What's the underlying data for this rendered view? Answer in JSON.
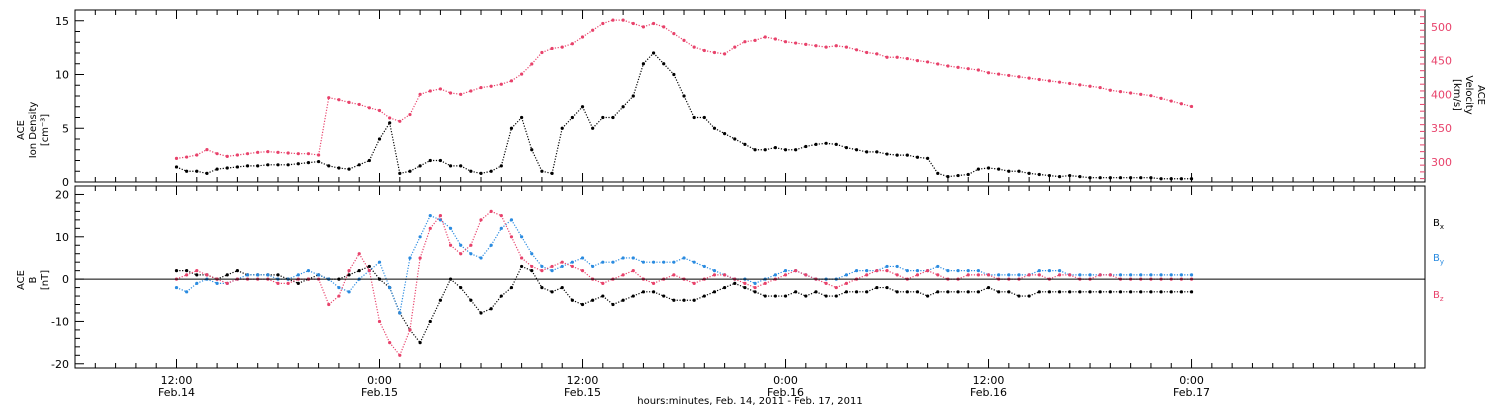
{
  "chart_data": [
    {
      "type": "scatter",
      "panel": "top",
      "ylabel": "ACE Ion Density [cm⁻³]",
      "ylabel_lines": [
        "ACE",
        "Ion Density",
        "[cm⁻³]"
      ],
      "ylim": [
        0,
        16
      ],
      "yticks": [
        0,
        5,
        10,
        15
      ],
      "y2label": "ACE Velocity [km/s]",
      "y2label_lines": [
        "ACE",
        "Velocity",
        "[km/s]"
      ],
      "y2lim": [
        270,
        525
      ],
      "y2ticks": [
        300,
        350,
        400,
        450,
        500
      ],
      "y2_color": "#e8426b",
      "series": [
        {
          "name": "Ion Density",
          "color": "#000000",
          "axis": "left",
          "x_hours": [
            0,
            1,
            2,
            3,
            4,
            5,
            6,
            7,
            8,
            9,
            10,
            11,
            12,
            13,
            14,
            15,
            16,
            17,
            18,
            19,
            20,
            21,
            22,
            23,
            24,
            25,
            26,
            27,
            28,
            29,
            30,
            31,
            32,
            33,
            34,
            35,
            36,
            37,
            38,
            39,
            40,
            41,
            42,
            43,
            44,
            45,
            46,
            47,
            48,
            49,
            50,
            51,
            52,
            53,
            54,
            55,
            56,
            57,
            58,
            59,
            60,
            61,
            62,
            63,
            64,
            65,
            66,
            67,
            68,
            69,
            70,
            71,
            72,
            73,
            74,
            75,
            76,
            77,
            78,
            79,
            80,
            81,
            82,
            83,
            84,
            85,
            86,
            87,
            88,
            89,
            90,
            91,
            92,
            93,
            94,
            95,
            96,
            97,
            98,
            99,
            100
          ],
          "values": [
            1.4,
            1.0,
            1.0,
            0.8,
            1.2,
            1.3,
            1.4,
            1.5,
            1.5,
            1.6,
            1.6,
            1.6,
            1.7,
            1.8,
            1.9,
            1.5,
            1.3,
            1.2,
            1.6,
            2.0,
            4.0,
            5.5,
            0.8,
            1.0,
            1.5,
            2.0,
            2.0,
            1.5,
            1.5,
            1.0,
            0.8,
            1.0,
            1.5,
            5.0,
            6.0,
            3.0,
            1.0,
            0.8,
            5.0,
            6.0,
            7.0,
            5.0,
            6.0,
            6.0,
            7.0,
            8.0,
            11.0,
            12.0,
            11.0,
            10.0,
            8.0,
            6.0,
            6.0,
            5.0,
            4.5,
            4.0,
            3.5,
            3.0,
            3.0,
            3.2,
            3.0,
            3.0,
            3.3,
            3.5,
            3.6,
            3.5,
            3.2,
            3.0,
            2.8,
            2.8,
            2.6,
            2.5,
            2.5,
            2.3,
            2.2,
            0.8,
            0.5,
            0.6,
            0.7,
            1.2,
            1.3,
            1.2,
            1.0,
            1.0,
            0.8,
            0.7,
            0.6,
            0.5,
            0.6,
            0.5,
            0.4,
            0.4,
            0.4,
            0.4,
            0.4,
            0.4,
            0.4,
            0.3,
            0.3,
            0.3,
            0.3
          ]
        },
        {
          "name": "Velocity",
          "color": "#e8426b",
          "axis": "right",
          "x_hours": [
            0,
            1,
            2,
            3,
            4,
            5,
            6,
            7,
            8,
            9,
            10,
            11,
            12,
            13,
            14,
            15,
            16,
            17,
            18,
            19,
            20,
            21,
            22,
            23,
            24,
            25,
            26,
            27,
            28,
            29,
            30,
            31,
            32,
            33,
            34,
            35,
            36,
            37,
            38,
            39,
            40,
            41,
            42,
            43,
            44,
            45,
            46,
            47,
            48,
            49,
            50,
            51,
            52,
            53,
            54,
            55,
            56,
            57,
            58,
            59,
            60,
            61,
            62,
            63,
            64,
            65,
            66,
            67,
            68,
            69,
            70,
            71,
            72,
            73,
            74,
            75,
            76,
            77,
            78,
            79,
            80,
            81,
            82,
            83,
            84,
            85,
            86,
            87,
            88,
            89,
            90,
            91,
            92,
            93,
            94,
            95,
            96,
            97,
            98,
            99,
            100
          ],
          "values": [
            305,
            307,
            310,
            318,
            312,
            308,
            310,
            312,
            314,
            315,
            314,
            313,
            312,
            312,
            310,
            395,
            392,
            388,
            385,
            380,
            376,
            365,
            360,
            370,
            400,
            405,
            408,
            402,
            400,
            405,
            410,
            412,
            415,
            420,
            430,
            445,
            462,
            468,
            470,
            475,
            485,
            495,
            505,
            510,
            510,
            505,
            500,
            505,
            500,
            490,
            480,
            470,
            465,
            462,
            460,
            470,
            478,
            480,
            485,
            482,
            478,
            476,
            474,
            472,
            470,
            472,
            470,
            466,
            462,
            460,
            455,
            455,
            453,
            450,
            448,
            445,
            442,
            440,
            438,
            436,
            432,
            430,
            428,
            426,
            424,
            422,
            420,
            418,
            416,
            414,
            412,
            410,
            406,
            404,
            402,
            400,
            398,
            394,
            390,
            386,
            382
          ]
        }
      ]
    },
    {
      "type": "scatter",
      "panel": "bottom",
      "ylabel": "ACE B [nT]",
      "ylabel_lines": [
        "ACE",
        "B",
        "[nT]"
      ],
      "ylim": [
        -21,
        22
      ],
      "yticks": [
        -20,
        -10,
        0,
        10,
        20
      ],
      "zero_line": true,
      "series": [
        {
          "name": "Bx",
          "color": "#000000",
          "label_main": "B",
          "label_sub": "x",
          "x_hours": [
            0,
            1,
            2,
            3,
            4,
            5,
            6,
            7,
            8,
            9,
            10,
            11,
            12,
            13,
            14,
            15,
            16,
            17,
            18,
            19,
            20,
            21,
            22,
            23,
            24,
            25,
            26,
            27,
            28,
            29,
            30,
            31,
            32,
            33,
            34,
            35,
            36,
            37,
            38,
            39,
            40,
            41,
            42,
            43,
            44,
            45,
            46,
            47,
            48,
            49,
            50,
            51,
            52,
            53,
            54,
            55,
            56,
            57,
            58,
            59,
            60,
            61,
            62,
            63,
            64,
            65,
            66,
            67,
            68,
            69,
            70,
            71,
            72,
            73,
            74,
            75,
            76,
            77,
            78,
            79,
            80,
            81,
            82,
            83,
            84,
            85,
            86,
            87,
            88,
            89,
            90,
            91,
            92,
            93,
            94,
            95,
            96,
            97,
            98,
            99,
            100
          ],
          "values": [
            2,
            2,
            1,
            1,
            0,
            1,
            2,
            1,
            1,
            1,
            1,
            0,
            -1,
            0,
            1,
            0,
            0,
            1,
            2,
            3,
            0,
            -2,
            -8,
            -12,
            -15,
            -10,
            -5,
            0,
            -2,
            -5,
            -8,
            -7,
            -4,
            -2,
            3,
            2,
            -2,
            -3,
            -2,
            -5,
            -6,
            -5,
            -4,
            -6,
            -5,
            -4,
            -3,
            -3,
            -4,
            -5,
            -5,
            -5,
            -4,
            -3,
            -2,
            -1,
            -2,
            -3,
            -4,
            -4,
            -4,
            -3,
            -4,
            -3,
            -4,
            -4,
            -3,
            -3,
            -3,
            -2,
            -2,
            -3,
            -3,
            -3,
            -4,
            -3,
            -3,
            -3,
            -3,
            -3,
            -2,
            -3,
            -3,
            -4,
            -4,
            -3,
            -3,
            -3,
            -3,
            -3,
            -3,
            -3,
            -3,
            -3,
            -3,
            -3,
            -3,
            -3,
            -3,
            -3,
            -3
          ]
        },
        {
          "name": "By",
          "color": "#2a8be0",
          "label_main": "B",
          "label_sub": "y",
          "x_hours": [
            0,
            1,
            2,
            3,
            4,
            5,
            6,
            7,
            8,
            9,
            10,
            11,
            12,
            13,
            14,
            15,
            16,
            17,
            18,
            19,
            20,
            21,
            22,
            23,
            24,
            25,
            26,
            27,
            28,
            29,
            30,
            31,
            32,
            33,
            34,
            35,
            36,
            37,
            38,
            39,
            40,
            41,
            42,
            43,
            44,
            45,
            46,
            47,
            48,
            49,
            50,
            51,
            52,
            53,
            54,
            55,
            56,
            57,
            58,
            59,
            60,
            61,
            62,
            63,
            64,
            65,
            66,
            67,
            68,
            69,
            70,
            71,
            72,
            73,
            74,
            75,
            76,
            77,
            78,
            79,
            80,
            81,
            82,
            83,
            84,
            85,
            86,
            87,
            88,
            89,
            90,
            91,
            92,
            93,
            94,
            95,
            96,
            97,
            98,
            99,
            100
          ],
          "values": [
            -2,
            -3,
            -1,
            0,
            -1,
            -1,
            0,
            1,
            1,
            1,
            0,
            0,
            1,
            2,
            1,
            0,
            -2,
            -3,
            0,
            2,
            4,
            -2,
            -8,
            5,
            10,
            15,
            14,
            12,
            8,
            6,
            5,
            8,
            12,
            14,
            10,
            6,
            3,
            2,
            3,
            4,
            5,
            3,
            4,
            4,
            5,
            5,
            4,
            4,
            4,
            4,
            5,
            4,
            3,
            2,
            1,
            0,
            0,
            -1,
            0,
            1,
            2,
            2,
            1,
            0,
            0,
            0,
            1,
            2,
            2,
            2,
            3,
            3,
            2,
            2,
            2,
            3,
            2,
            2,
            2,
            2,
            1,
            1,
            1,
            1,
            1,
            2,
            2,
            2,
            1,
            1,
            1,
            1,
            1,
            1,
            1,
            1,
            1,
            1,
            1,
            1,
            1
          ]
        },
        {
          "name": "Bz",
          "color": "#e8426b",
          "label_main": "B",
          "label_sub": "z",
          "x_hours": [
            0,
            1,
            2,
            3,
            4,
            5,
            6,
            7,
            8,
            9,
            10,
            11,
            12,
            13,
            14,
            15,
            16,
            17,
            18,
            19,
            20,
            21,
            22,
            23,
            24,
            25,
            26,
            27,
            28,
            29,
            30,
            31,
            32,
            33,
            34,
            35,
            36,
            37,
            38,
            39,
            40,
            41,
            42,
            43,
            44,
            45,
            46,
            47,
            48,
            49,
            50,
            51,
            52,
            53,
            54,
            55,
            56,
            57,
            58,
            59,
            60,
            61,
            62,
            63,
            64,
            65,
            66,
            67,
            68,
            69,
            70,
            71,
            72,
            73,
            74,
            75,
            76,
            77,
            78,
            79,
            80,
            81,
            82,
            83,
            84,
            85,
            86,
            87,
            88,
            89,
            90,
            91,
            92,
            93,
            94,
            95,
            96,
            97,
            98,
            99,
            100
          ],
          "values": [
            0,
            1,
            2,
            1,
            0,
            -1,
            0,
            0,
            0,
            0,
            -1,
            -1,
            0,
            0,
            0,
            -6,
            -4,
            2,
            6,
            2,
            -10,
            -15,
            -18,
            -12,
            5,
            12,
            15,
            8,
            6,
            8,
            14,
            16,
            15,
            10,
            5,
            3,
            2,
            3,
            4,
            3,
            2,
            0,
            -1,
            0,
            1,
            2,
            0,
            -1,
            0,
            1,
            0,
            -1,
            0,
            1,
            1,
            0,
            -1,
            -2,
            -1,
            0,
            1,
            2,
            1,
            0,
            -1,
            -2,
            -1,
            0,
            1,
            2,
            2,
            1,
            0,
            1,
            2,
            1,
            0,
            0,
            1,
            1,
            1,
            0,
            0,
            0,
            1,
            1,
            0,
            1,
            1,
            0,
            0,
            1,
            1,
            0,
            0,
            0,
            0,
            0,
            0,
            0,
            0
          ]
        }
      ]
    }
  ],
  "x_axis": {
    "title": "hours:minutes, Feb. 14, 2011 - Feb. 17, 2011",
    "range_hours": [
      -10,
      123
    ],
    "major_ticks": [
      {
        "hour": 0,
        "time": "12:00",
        "date": "Feb.14"
      },
      {
        "hour": 20,
        "time": "0:00",
        "date": "Feb.15"
      },
      {
        "hour": 40,
        "time": "12:00",
        "date": "Feb.15"
      },
      {
        "hour": 60,
        "time": "0:00",
        "date": "Feb.16"
      },
      {
        "hour": 80,
        "time": "12:00",
        "date": "Feb.16"
      },
      {
        "hour": 100,
        "time": "0:00",
        "date": "Feb.17"
      }
    ]
  }
}
